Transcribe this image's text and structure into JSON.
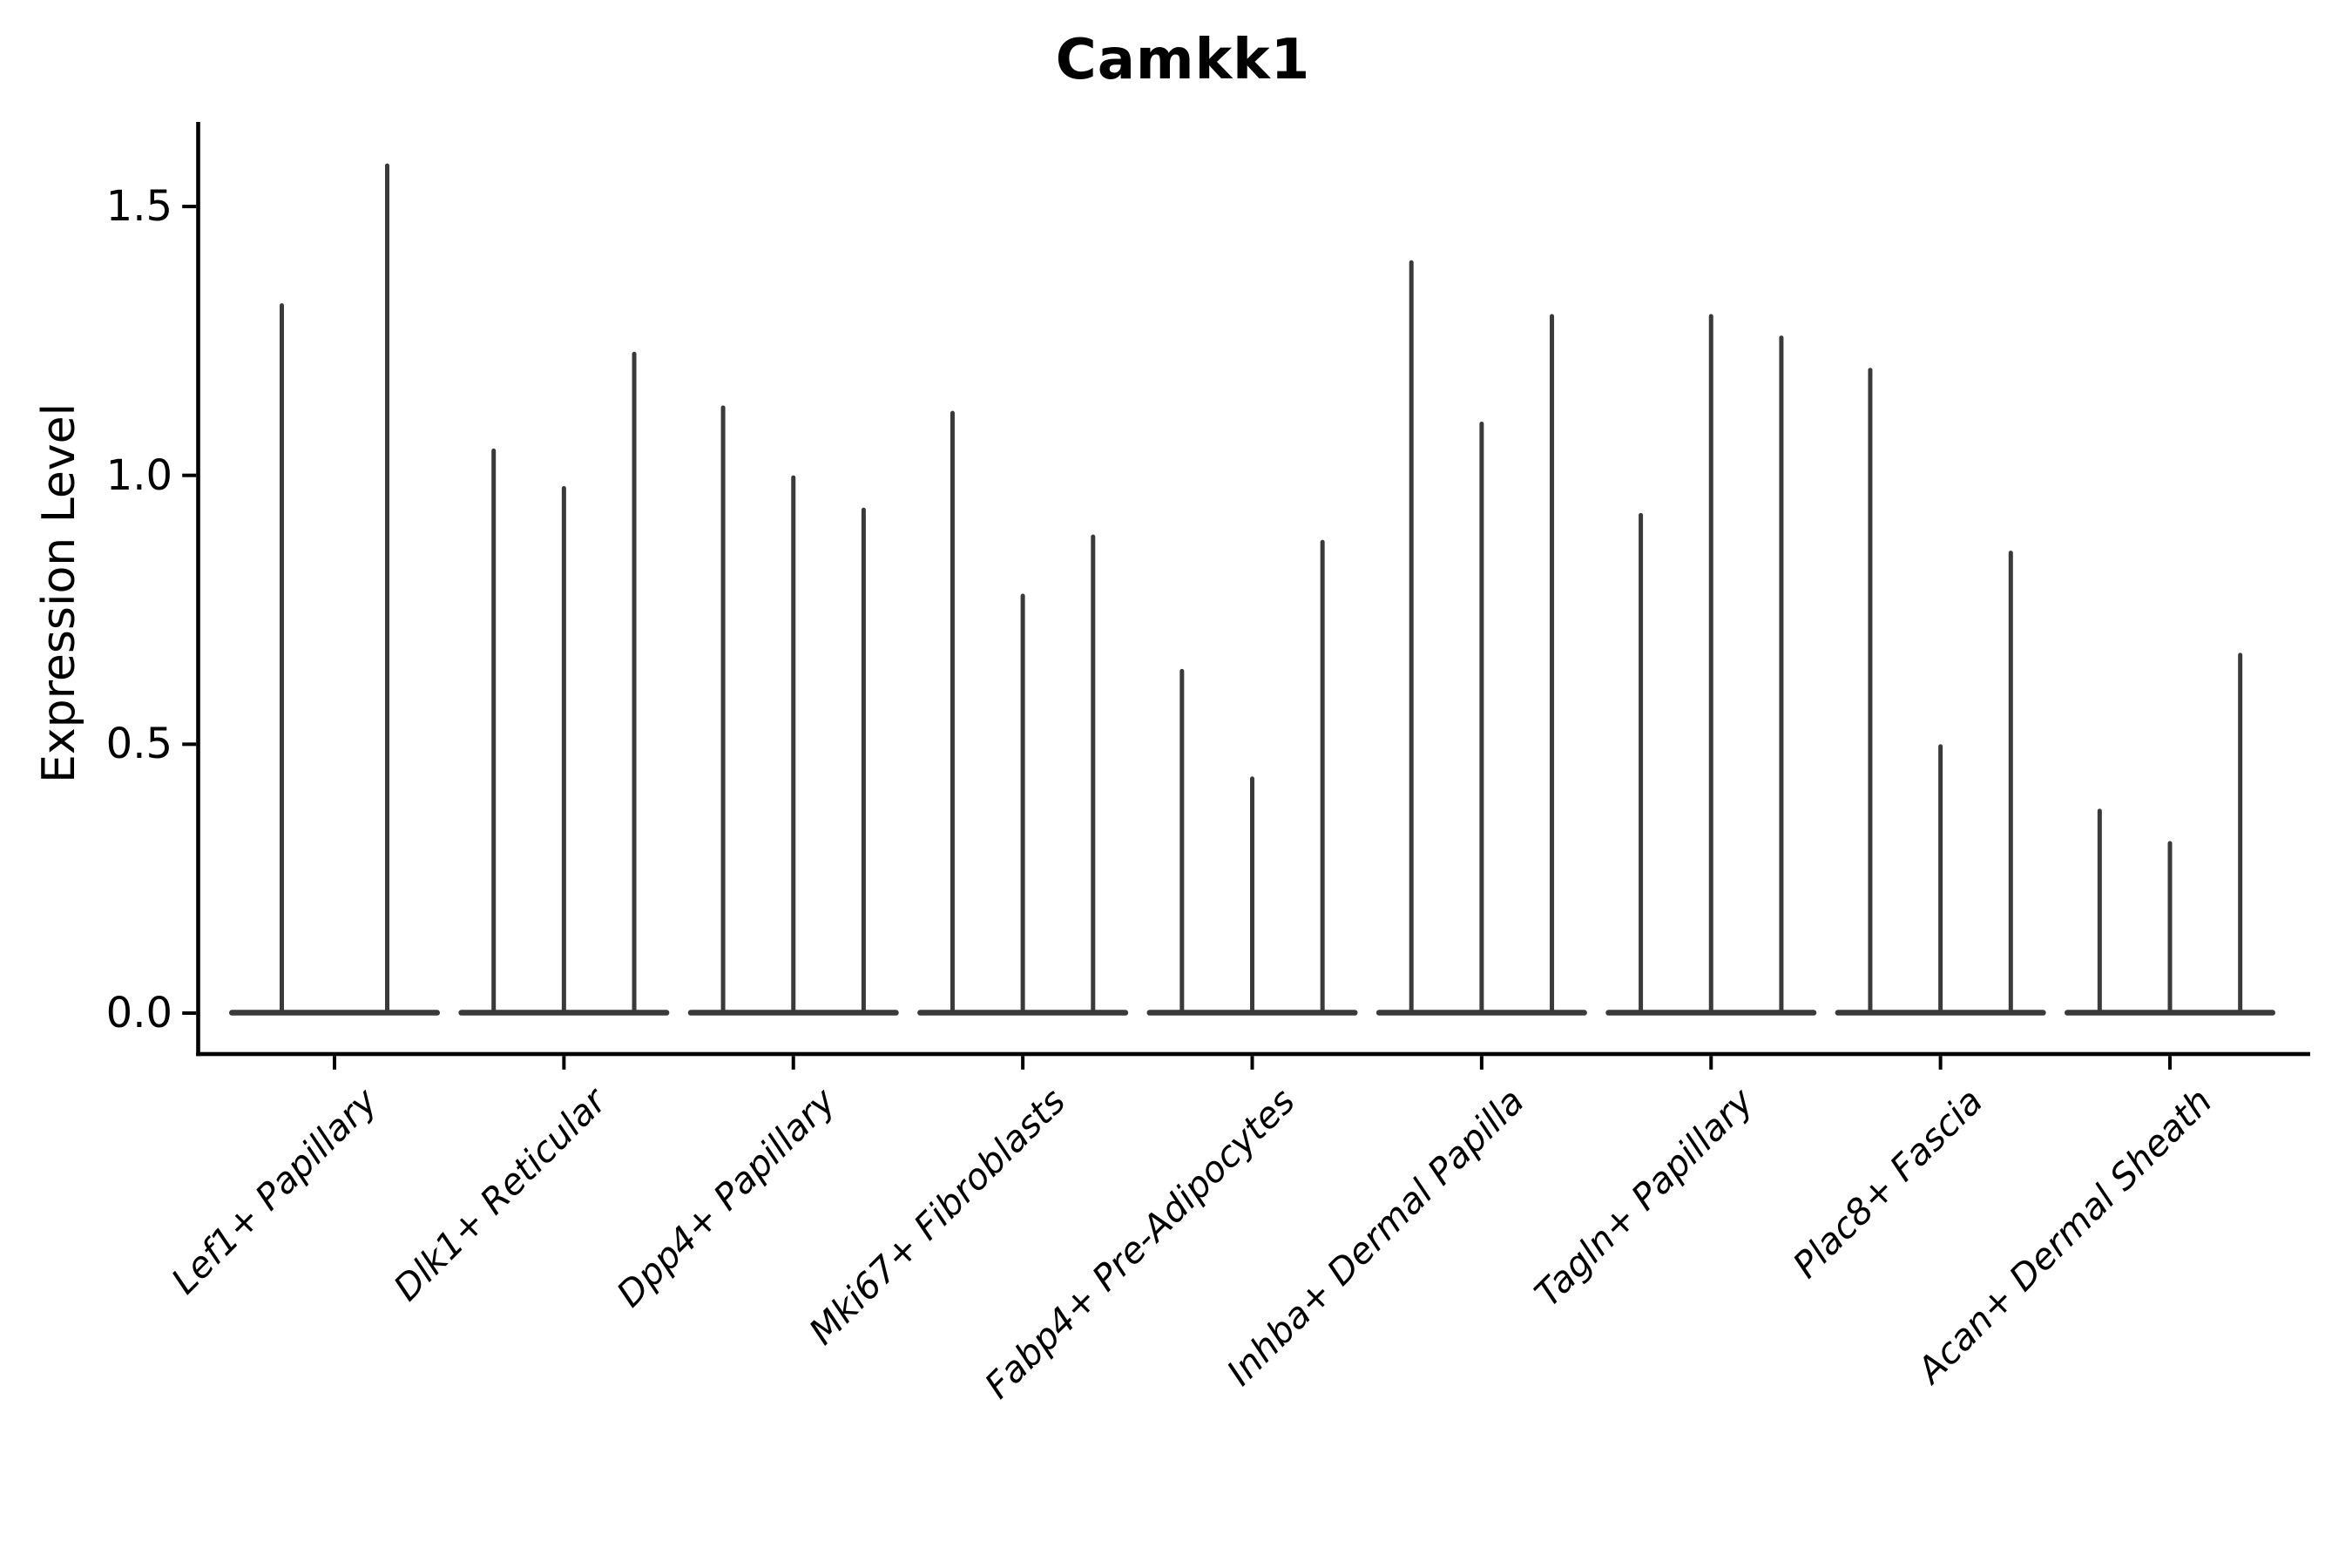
{
  "figure": {
    "background": "#ffffff"
  },
  "chart_data": {
    "type": "violin",
    "title": "Camkk1",
    "ylabel": "Expression Level",
    "xlabel": "",
    "legend": "none",
    "grid": false,
    "axis_color": "#000000",
    "violin_color": "#3a3a3a",
    "ylim": [
      -0.08,
      1.67
    ],
    "baseline_value": 0.0,
    "yticks": [
      {
        "value": 0.0,
        "label": "0.0"
      },
      {
        "value": 0.5,
        "label": "0.5"
      },
      {
        "value": 1.0,
        "label": "1.0"
      },
      {
        "value": 1.5,
        "label": "1.5"
      }
    ],
    "categories": [
      "Lef1+ Papillary",
      "Dlk1+ Reticular",
      "Dpp4+ Papillary",
      "Mki67+ Fibroblasts",
      "Fabp4+ Pre-Adipocytes",
      "Inhba+ Dermal Papilla",
      "Tagln+ Papillary",
      "Plac8+ Fascia",
      "Acan+ Dermal Sheath"
    ],
    "groups": [
      {
        "category": "Lef1+ Papillary",
        "violin_maxima": [
          1.32,
          1.58
        ]
      },
      {
        "category": "Dlk1+ Reticular",
        "violin_maxima": [
          1.05,
          0.98,
          1.23
        ]
      },
      {
        "category": "Dpp4+ Papillary",
        "violin_maxima": [
          1.13,
          1.0,
          0.94
        ]
      },
      {
        "category": "Mki67+ Fibroblasts",
        "violin_maxima": [
          1.12,
          0.78,
          0.89
        ]
      },
      {
        "category": "Fabp4+ Pre-Adipocytes",
        "violin_maxima": [
          0.64,
          0.44,
          0.88
        ]
      },
      {
        "category": "Inhba+ Dermal Papilla",
        "violin_maxima": [
          1.4,
          1.1,
          1.3
        ]
      },
      {
        "category": "Tagln+ Papillary",
        "violin_maxima": [
          0.93,
          1.3,
          1.26
        ]
      },
      {
        "category": "Plac8+ Fascia",
        "violin_maxima": [
          1.2,
          0.5,
          0.86
        ]
      },
      {
        "category": "Acan+ Dermal Sheath",
        "violin_maxima": [
          0.38,
          0.32,
          0.67
        ]
      }
    ]
  }
}
